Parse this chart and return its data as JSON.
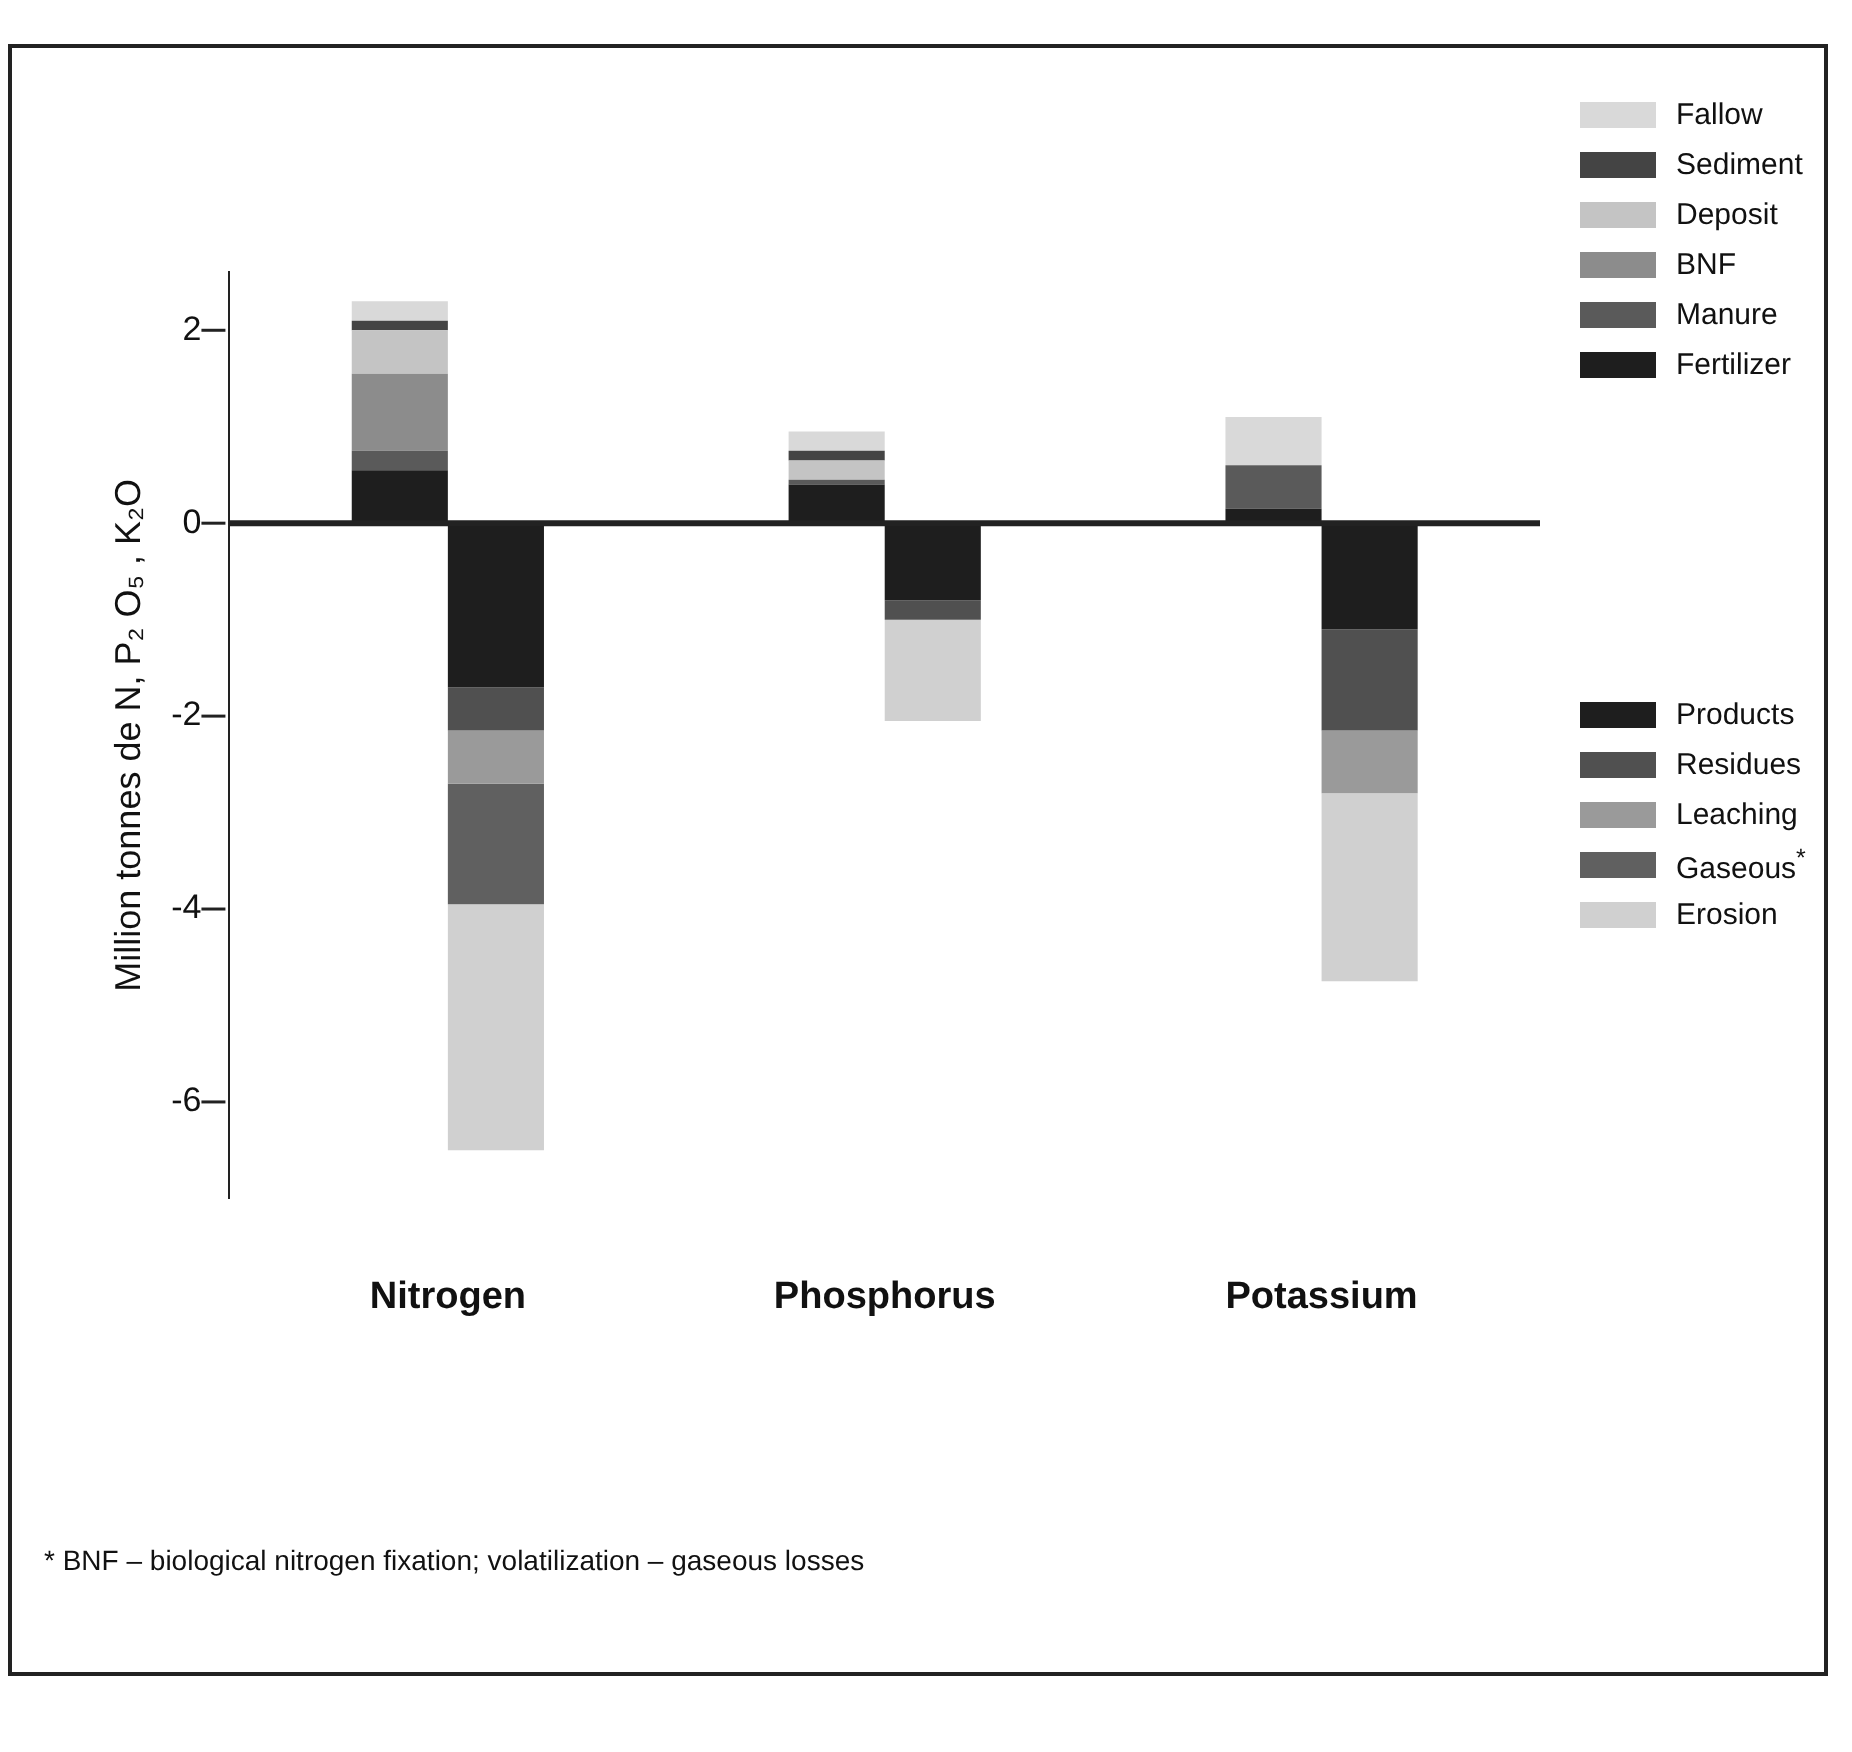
{
  "chart_data": {
    "type": "bar",
    "stacked": true,
    "ylabel": "Million tonnes de N, P₂ O₅ , K₂O",
    "categories": [
      "Nitrogen",
      "Phosphorus",
      "Potassium"
    ],
    "ylim": [
      -7,
      2.6
    ],
    "ref_lines": [
      {
        "axis": "y",
        "value": 0,
        "color": "#222222"
      }
    ],
    "yticks": [
      2,
      0,
      -2,
      -4,
      -6
    ],
    "grid": false,
    "legend": "right",
    "series": [
      {
        "name": "Fertilizer",
        "color": "#1e1e1e",
        "values": [
          0.55,
          0.4,
          0.15
        ]
      },
      {
        "name": "Manure",
        "color": "#5a5a5a",
        "values": [
          0.2,
          0.05,
          0.45
        ]
      },
      {
        "name": "BNF",
        "color": "#8c8c8c",
        "values": [
          0.8,
          0,
          0
        ]
      },
      {
        "name": "Deposit",
        "color": "#c4c4c4",
        "values": [
          0.45,
          0.2,
          0
        ]
      },
      {
        "name": "Sediment",
        "color": "#444444",
        "values": [
          0.1,
          0.1,
          0
        ]
      },
      {
        "name": "Fallow",
        "color": "#d9d9d9",
        "values": [
          0.2,
          0.2,
          0.5
        ]
      },
      {
        "name": "Products",
        "color": "#1e1e1e",
        "values": [
          -1.7,
          -0.8,
          -1.1
        ]
      },
      {
        "name": "Residues",
        "color": "#505050",
        "values": [
          -0.45,
          -0.2,
          -1.05
        ]
      },
      {
        "name": "Leaching",
        "color": "#9a9a9a",
        "values": [
          -0.55,
          0,
          -0.65
        ]
      },
      {
        "name": "Gaseous$^{*}$",
        "color": "#606060",
        "values": [
          -1.25,
          0,
          0
        ]
      },
      {
        "name": "Erosion",
        "color": "#d0d0d0",
        "values": [
          -2.55,
          -1.05,
          -1.95
        ]
      }
    ],
    "annotations": [
      "* BNF – biological nitrogen fixation; volatilization – gaseous losses"
    ]
  }
}
